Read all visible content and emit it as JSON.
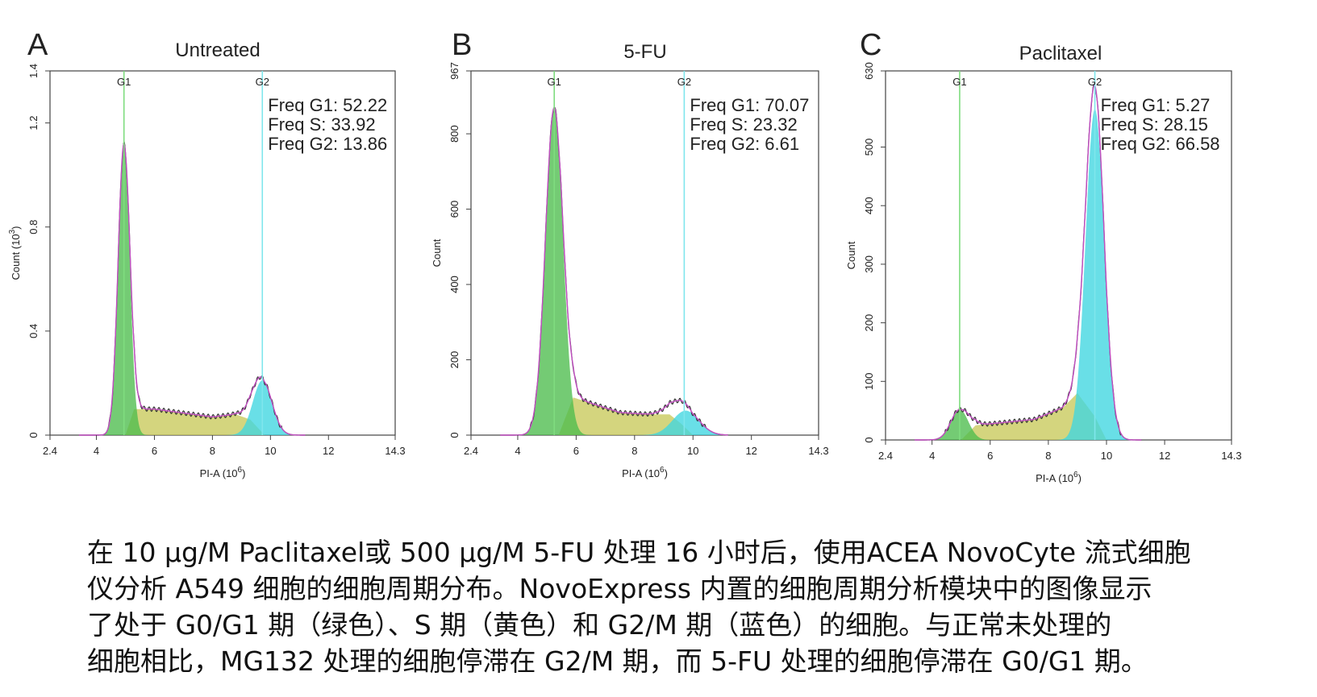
{
  "chart_data": [
    {
      "type": "area",
      "panel_letter": "A",
      "title": "Untreated",
      "xlabel": "PI-A",
      "x_unit_exp": "6",
      "ylabel": "Count",
      "y_unit_exp": "3",
      "xlim": [
        2.4,
        14.3
      ],
      "ylim": [
        0,
        1.4
      ],
      "x_ticks": [
        "2.4",
        "4",
        "6",
        "8",
        "10",
        "12",
        "14.3"
      ],
      "x_tick_values": [
        2.4,
        4,
        6,
        8,
        10,
        12,
        14.3
      ],
      "y_ticks": [
        "0",
        "0.4",
        "0.8",
        "1.2",
        "1.4"
      ],
      "y_tick_values": [
        0,
        0.4,
        0.8,
        1.2,
        1.4
      ],
      "gates": [
        {
          "label": "G1",
          "x": 4.95,
          "color": "#7fdc7f"
        },
        {
          "label": "G2",
          "x": 9.72,
          "color": "#7fe6ec"
        }
      ],
      "annotations": [
        "Freq G1: 52.22",
        "Freq S: 33.92",
        "Freq G2: 13.86"
      ],
      "series": [
        {
          "key": "G1",
          "color": "#4dbd4d",
          "peak_x": 4.95,
          "peak_y": 1.12,
          "sigma": 0.2
        },
        {
          "key": "S",
          "color": "#c8c95a",
          "points": [
            [
              5.0,
              0
            ],
            [
              5.3,
              0.1
            ],
            [
              6.0,
              0.1
            ],
            [
              7.0,
              0.085
            ],
            [
              8.0,
              0.07
            ],
            [
              8.8,
              0.08
            ],
            [
              9.3,
              0.06
            ],
            [
              9.8,
              0
            ]
          ]
        },
        {
          "key": "G2",
          "color": "#3fd6e0",
          "peak_x": 9.72,
          "peak_y": 0.21,
          "sigma": 0.33
        }
      ]
    },
    {
      "type": "area",
      "panel_letter": "B",
      "title": "5-FU",
      "xlabel": "PI-A",
      "x_unit_exp": "6",
      "ylabel": "Count",
      "y_unit_exp": "",
      "xlim": [
        2.4,
        14.3
      ],
      "ylim": [
        0,
        967
      ],
      "x_ticks": [
        "2.4",
        "4",
        "6",
        "8",
        "10",
        "12",
        "14.3"
      ],
      "x_tick_values": [
        2.4,
        4,
        6,
        8,
        10,
        12,
        14.3
      ],
      "y_ticks": [
        "0",
        "200",
        "400",
        "600",
        "800",
        "967"
      ],
      "y_tick_values": [
        0,
        200,
        400,
        600,
        800,
        967
      ],
      "gates": [
        {
          "label": "G1",
          "x": 5.25,
          "color": "#7fdc7f"
        },
        {
          "label": "G2",
          "x": 9.7,
          "color": "#7fe6ec"
        }
      ],
      "annotations": [
        "Freq G1: 70.07",
        "Freq S: 23.32",
        "Freq G2: 6.61"
      ],
      "series": [
        {
          "key": "G1",
          "color": "#4dbd4d",
          "peak_x": 5.25,
          "peak_y": 870,
          "sigma": 0.3
        },
        {
          "key": "S",
          "color": "#c8c95a",
          "points": [
            [
              5.4,
              0
            ],
            [
              5.9,
              100
            ],
            [
              6.5,
              85
            ],
            [
              7.5,
              60
            ],
            [
              8.5,
              55
            ],
            [
              9.2,
              55
            ],
            [
              9.6,
              30
            ],
            [
              10.0,
              0
            ]
          ]
        },
        {
          "key": "G2",
          "color": "#3fd6e0",
          "peak_x": 9.75,
          "peak_y": 65,
          "sigma": 0.45
        }
      ]
    },
    {
      "type": "area",
      "panel_letter": "C",
      "title": "Paclitaxel",
      "xlabel": "PI-A",
      "x_unit_exp": "6",
      "ylabel": "Count",
      "y_unit_exp": "",
      "xlim": [
        2.4,
        14.3
      ],
      "ylim": [
        0,
        630
      ],
      "x_ticks": [
        "2.4",
        "4",
        "6",
        "8",
        "10",
        "12",
        "14.3"
      ],
      "x_tick_values": [
        2.4,
        4,
        6,
        8,
        10,
        12,
        14.3
      ],
      "y_ticks": [
        "0",
        "100",
        "200",
        "300",
        "400",
        "500",
        "630"
      ],
      "y_tick_values": [
        0,
        100,
        200,
        300,
        400,
        500,
        630
      ],
      "gates": [
        {
          "label": "G1",
          "x": 4.95,
          "color": "#7fdc7f"
        },
        {
          "label": "G2",
          "x": 9.6,
          "color": "#7fe6ec"
        }
      ],
      "annotations": [
        "Freq G1: 5.27",
        "Freq S: 28.15",
        "Freq G2: 66.58"
      ],
      "series": [
        {
          "key": "G1",
          "color": "#4dbd4d",
          "peak_x": 4.95,
          "peak_y": 52,
          "sigma": 0.3
        },
        {
          "key": "S",
          "color": "#c8c95a",
          "points": [
            [
              5.0,
              0
            ],
            [
              5.5,
              25
            ],
            [
              6.5,
              30
            ],
            [
              7.5,
              35
            ],
            [
              8.5,
              55
            ],
            [
              9.0,
              80
            ],
            [
              9.6,
              40
            ],
            [
              10.0,
              0
            ]
          ]
        },
        {
          "key": "G2",
          "color": "#3fd6e0",
          "peak_x": 9.6,
          "peak_y": 565,
          "sigma": 0.32
        }
      ]
    }
  ],
  "caption": {
    "lines": [
      "在 10 µg/M Paclitaxel或 500 µg/M 5-FU 处理 16 小时后，使用ACEA NovoCyte 流式细胞",
      "仪分析 A549 细胞的细胞周期分布。NovoExpress 内置的细胞周期分析模块中的图像显示",
      "了处于 G0/G1 期（绿色）、S 期（黄色）和 G2/M 期（蓝色）的细胞。与正常未处理的",
      "细胞相比，MG132 处理的细胞停滞在 G2/M 期，而 5-FU 处理的细胞停滞在 G0/G1 期。"
    ]
  },
  "colors": {
    "outline": "#c24fc2",
    "envelope": "#333333",
    "axis": "#444444",
    "text": "#222222"
  }
}
